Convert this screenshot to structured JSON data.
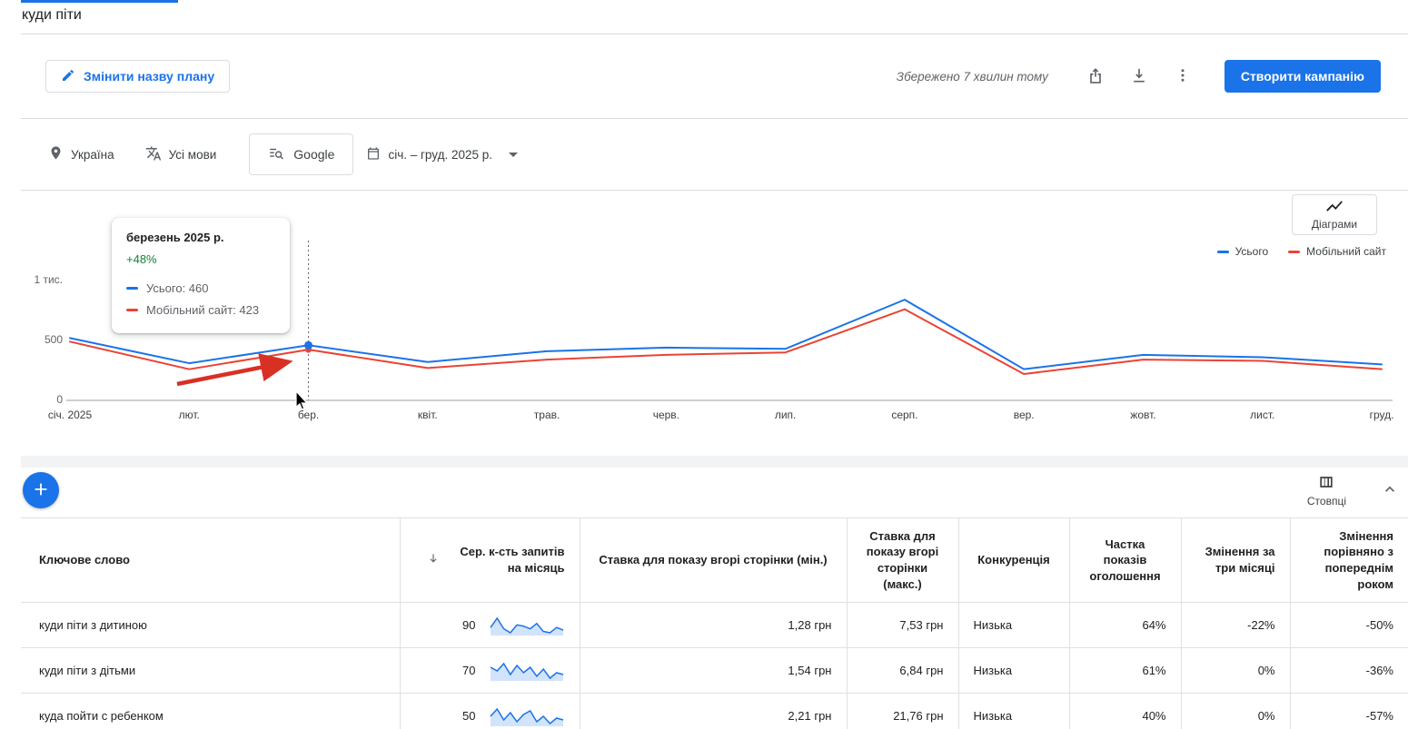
{
  "tab": {
    "title": "куди піти"
  },
  "toolbar": {
    "rename_button": "Змінити назву плану",
    "saved_status": "Збережено 7 хвилин тому",
    "create_campaign_button": "Створити кампанію"
  },
  "filters": {
    "location": "Україна",
    "language": "Усі мови",
    "network": "Google",
    "date_range": "січ. – груд. 2025 р."
  },
  "chart": {
    "toggle_button": "Діаграми",
    "legend": {
      "total": "Усього",
      "mobile": "Мобільний сайт"
    },
    "tooltip": {
      "title": "березень 2025 р.",
      "change": "+48%",
      "total": "Усього: 460",
      "mobile": "Мобільний сайт: 423"
    }
  },
  "chart_data": {
    "type": "line",
    "x": [
      "січ. 2025",
      "лют.",
      "бер.",
      "квіт.",
      "трав.",
      "черв.",
      "лип.",
      "серп.",
      "вер.",
      "жовт.",
      "лист.",
      "груд."
    ],
    "series": [
      {
        "name": "Усього",
        "color": "#1a73e8",
        "values": [
          520,
          310,
          460,
          320,
          410,
          440,
          430,
          840,
          260,
          380,
          360,
          300
        ]
      },
      {
        "name": "Мобільний сайт",
        "color": "#ea4335",
        "values": [
          490,
          260,
          423,
          270,
          340,
          380,
          400,
          760,
          220,
          340,
          330,
          260
        ]
      }
    ],
    "ylim": [
      0,
      1000
    ],
    "yticks": [
      {
        "v": 0,
        "label": "0"
      },
      {
        "v": 500,
        "label": "500"
      },
      {
        "v": 1000,
        "label": "1 тис."
      }
    ],
    "highlight_index": 2,
    "highlight_values": {
      "total": 460,
      "mobile": 423
    },
    "legend_position": "top-right",
    "grid": false
  },
  "table": {
    "columns_button": "Стовпці",
    "headers": [
      "Ключове слово",
      "Сер. к-сть запитів на місяць",
      "Ставка для показу вгорі сторінки (мін.)",
      "Ставка для показу вгорі сторінки (макс.)",
      "Конкуренція",
      "Частка показів оголошення",
      "Змінення за три місяці",
      "Змінення порівняно з попереднім роком"
    ],
    "rows": [
      {
        "keyword": "куди піти з дитиною",
        "avg": "90",
        "spark": [
          60,
          95,
          55,
          40,
          70,
          65,
          55,
          75,
          45,
          40,
          60,
          50
        ],
        "bid_min": "1,28 грн",
        "bid_max": "7,53 грн",
        "competition": "Низька",
        "ad_share": "64%",
        "change_3m": "-22%",
        "change_yoy": "-50%"
      },
      {
        "keyword": "куди піти з дітьми",
        "avg": "70",
        "spark": [
          70,
          60,
          80,
          50,
          75,
          55,
          70,
          45,
          65,
          40,
          55,
          50
        ],
        "bid_min": "1,54 грн",
        "bid_max": "6,84 грн",
        "competition": "Низька",
        "ad_share": "61%",
        "change_3m": "0%",
        "change_yoy": "-36%"
      },
      {
        "keyword": "куда пойти с ребенком",
        "avg": "50",
        "spark": [
          55,
          75,
          45,
          65,
          40,
          60,
          70,
          40,
          55,
          35,
          50,
          45
        ],
        "bid_min": "2,21 грн",
        "bid_max": "21,76 грн",
        "competition": "Низька",
        "ad_share": "40%",
        "change_3m": "0%",
        "change_yoy": "-57%"
      }
    ]
  }
}
